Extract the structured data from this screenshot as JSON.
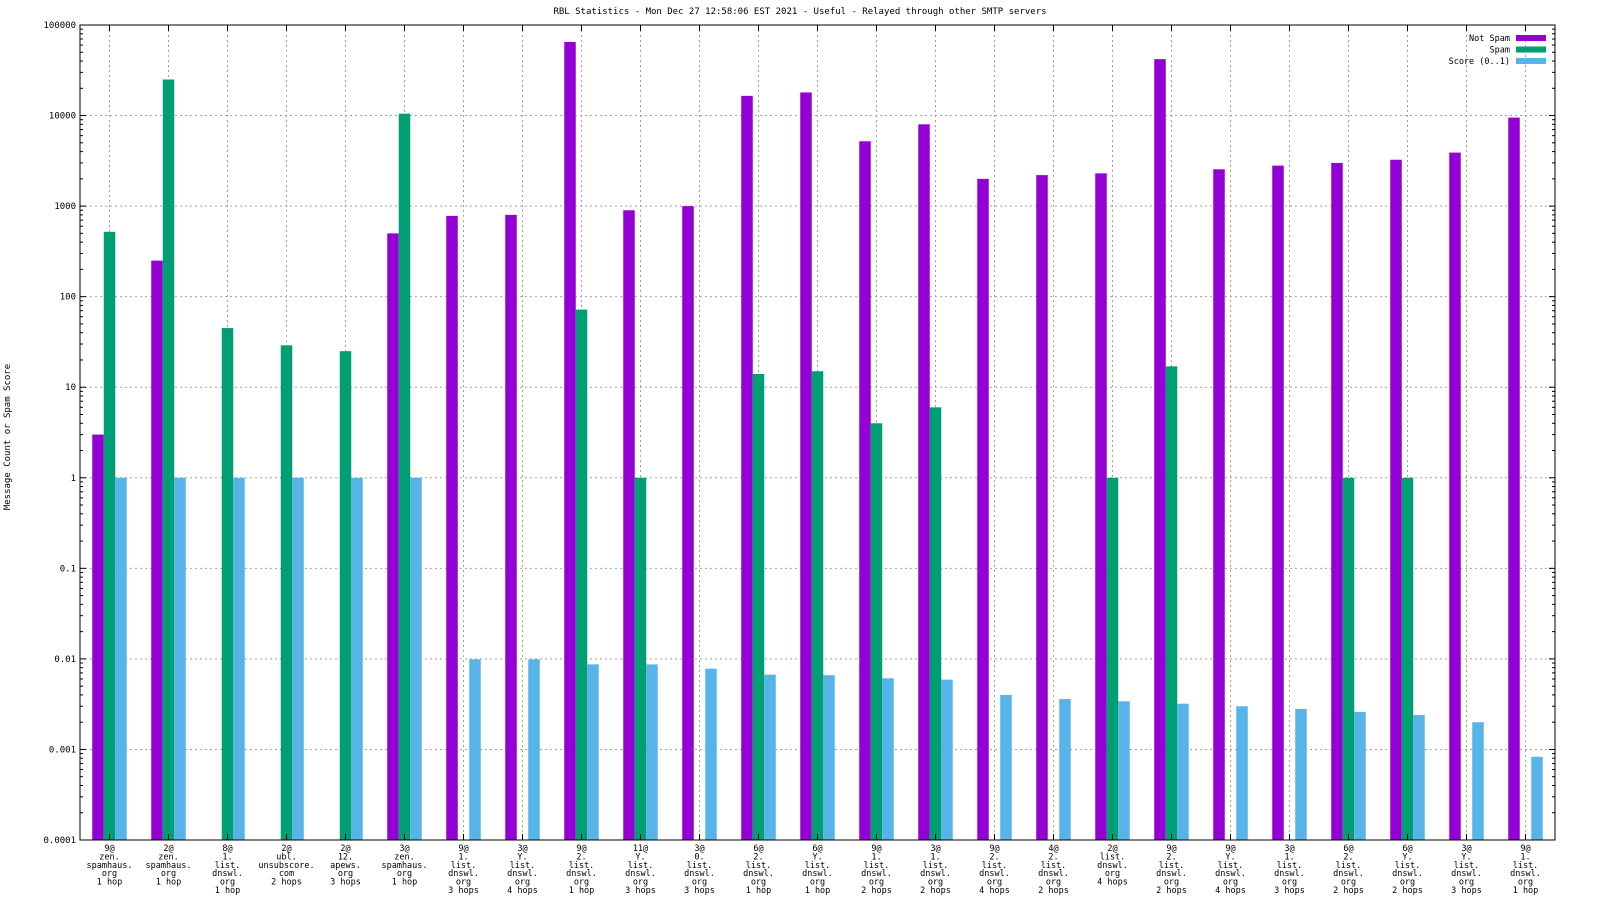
{
  "chart_data": {
    "type": "bar",
    "title": "RBL Statistics - Mon Dec 27 12:58:06 EST 2021 - Useful - Relayed through other SMTP servers",
    "xlabel": "",
    "ylabel": "Message Count or Spam Score",
    "yscale": "log",
    "ylim": [
      0.0001,
      100000
    ],
    "ytick_labels": [
      "100000",
      "10000",
      "1000",
      "100",
      "10",
      "1",
      "0.1",
      "0.01",
      "0.001",
      "0.0001"
    ],
    "grid": true,
    "legend_position": "top-right",
    "categories": [
      [
        "9@",
        "zen.",
        "spamhaus.",
        "org",
        "1 hop"
      ],
      [
        "2@",
        "zen.",
        "spamhaus.",
        "org",
        "1 hop"
      ],
      [
        "8@",
        "1.",
        "list.",
        "dnswl.",
        "org",
        "1 hop"
      ],
      [
        "2@",
        "ubl.",
        "unsubscore.",
        "com",
        "2 hops"
      ],
      [
        "2@",
        "12.",
        "apews.",
        "org",
        "3 hops"
      ],
      [
        "3@",
        "zen.",
        "spamhaus.",
        "org",
        "1 hop"
      ],
      [
        "9@",
        "1.",
        "list.",
        "dnswl.",
        "org",
        "3 hops"
      ],
      [
        "3@",
        "Y.",
        "list.",
        "dnswl.",
        "org",
        "4 hops"
      ],
      [
        "9@",
        "2.",
        "list.",
        "dnswl.",
        "org",
        "1 hop"
      ],
      [
        "11@",
        "Y.",
        "list.",
        "dnswl.",
        "org",
        "3 hops"
      ],
      [
        "3@",
        "0.",
        "list.",
        "dnswl.",
        "org",
        "3 hops"
      ],
      [
        "6@",
        "2.",
        "list.",
        "dnswl.",
        "org",
        "1 hop"
      ],
      [
        "6@",
        "Y.",
        "list.",
        "dnswl.",
        "org",
        "1 hop"
      ],
      [
        "9@",
        "1.",
        "list.",
        "dnswl.",
        "org",
        "2 hops"
      ],
      [
        "3@",
        "1.",
        "list.",
        "dnswl.",
        "org",
        "2 hops"
      ],
      [
        "9@",
        "2.",
        "list.",
        "dnswl.",
        "org",
        "4 hops"
      ],
      [
        "4@",
        "2.",
        "list.",
        "dnswl.",
        "org",
        "2 hops"
      ],
      [
        "2@",
        "list.",
        "dnswl.",
        "org",
        "4 hops"
      ],
      [
        "9@",
        "2.",
        "list.",
        "dnswl.",
        "org",
        "2 hops"
      ],
      [
        "9@",
        "Y.",
        "list.",
        "dnswl.",
        "org",
        "4 hops"
      ],
      [
        "3@",
        "1.",
        "list.",
        "dnswl.",
        "org",
        "3 hops"
      ],
      [
        "6@",
        "2.",
        "list.",
        "dnswl.",
        "org",
        "2 hops"
      ],
      [
        "6@",
        "Y.",
        "list.",
        "dnswl.",
        "org",
        "2 hops"
      ],
      [
        "3@",
        "Y.",
        "list.",
        "dnswl.",
        "org",
        "3 hops"
      ],
      [
        "9@",
        "1.",
        "list.",
        "dnswl.",
        "org",
        "1 hop"
      ]
    ],
    "series": [
      {
        "name": "Not Spam",
        "color": "#9400d3",
        "values": [
          3,
          250,
          null,
          null,
          null,
          500,
          780,
          800,
          65000,
          900,
          1000,
          16500,
          18000,
          5200,
          8000,
          2000,
          2200,
          2300,
          42000,
          2550,
          2800,
          3000,
          3250,
          3900,
          9500
        ]
      },
      {
        "name": "Spam",
        "color": "#009e73",
        "values": [
          520,
          25000,
          45,
          29,
          25,
          10500,
          null,
          null,
          72,
          1,
          null,
          14,
          15,
          4,
          6,
          null,
          null,
          1,
          17,
          null,
          null,
          1,
          1,
          null,
          null
        ]
      },
      {
        "name": "Score (0..1)",
        "color": "#56b4e9",
        "values": [
          1,
          1,
          1,
          1,
          1,
          1,
          0.0099,
          0.0099,
          0.0087,
          0.0087,
          0.0078,
          0.0067,
          0.0066,
          0.0061,
          0.0059,
          0.004,
          0.0036,
          0.0034,
          0.0032,
          0.003,
          0.0028,
          0.0026,
          0.0024,
          0.002,
          0.00083
        ]
      }
    ]
  }
}
